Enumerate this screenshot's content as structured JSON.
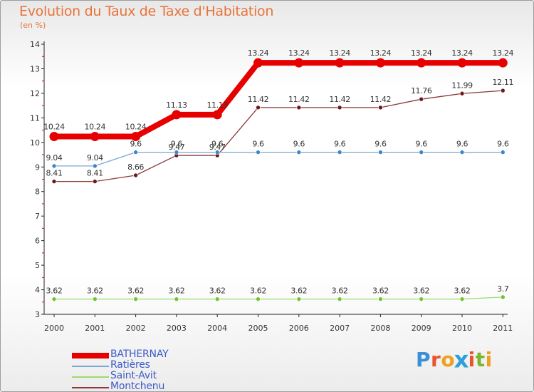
{
  "title": "Evolution du Taux de Taxe d'Habitation",
  "subtitle": "(en %)",
  "logo": {
    "text": "Proxiti",
    "colors": [
      "#3a8fd6",
      "#e8552b",
      "#f0a020",
      "#2e9fd8",
      "#e8552b",
      "#7ab530",
      "#f0a020"
    ]
  },
  "chart_data": {
    "type": "line",
    "title": "Evolution du Taux de Taxe d'Habitation",
    "ylabel": "(en %)",
    "xlabel": "",
    "ylim": [
      3,
      14
    ],
    "yticks": [
      "3",
      "4",
      "5",
      "6",
      "7",
      "8",
      "9",
      "10",
      "11",
      "12",
      "13",
      "14"
    ],
    "categories": [
      "2000",
      "2001",
      "2002",
      "2003",
      "2004",
      "2005",
      "2006",
      "2007",
      "2008",
      "2009",
      "2010",
      "2011"
    ],
    "grid": false,
    "legend_position": "bottom-left",
    "series": [
      {
        "name": "BATHERNAY",
        "color": "#e60000",
        "style": "thick",
        "values": [
          10.24,
          10.24,
          10.24,
          11.13,
          11.13,
          13.24,
          13.24,
          13.24,
          13.24,
          13.24,
          13.24,
          13.24
        ],
        "labels": [
          "10.24",
          "10.24",
          "10.24",
          "11.13",
          "11.13",
          "13.24",
          "13.24",
          "13.24",
          "13.24",
          "13.24",
          "13.24",
          "13.24"
        ]
      },
      {
        "name": "Ratières",
        "color": "#7ba7d1",
        "marker": "#3e86c9",
        "style": "thin",
        "values": [
          9.04,
          9.04,
          9.6,
          9.6,
          9.6,
          9.6,
          9.6,
          9.6,
          9.6,
          9.6,
          9.6,
          9.6
        ],
        "labels": [
          "9.04",
          "9.04",
          "9.6",
          "9.6",
          "9.6",
          "9.6",
          "9.6",
          "9.6",
          "9.6",
          "9.6",
          "9.6",
          "9.6"
        ]
      },
      {
        "name": "Saint-Avit",
        "color": "#9edb6e",
        "marker": "#73c234",
        "style": "thin",
        "values": [
          3.62,
          3.62,
          3.62,
          3.62,
          3.62,
          3.62,
          3.62,
          3.62,
          3.62,
          3.62,
          3.62,
          3.7
        ],
        "labels": [
          "3.62",
          "3.62",
          "3.62",
          "3.62",
          "3.62",
          "3.62",
          "3.62",
          "3.62",
          "3.62",
          "3.62",
          "3.62",
          "3.7"
        ]
      },
      {
        "name": "Montchenu",
        "color": "#8b3a3a",
        "marker": "#6b1a1a",
        "style": "thin",
        "values": [
          8.41,
          8.41,
          8.66,
          9.47,
          9.47,
          11.42,
          11.42,
          11.42,
          11.42,
          11.76,
          11.99,
          12.11
        ],
        "labels": [
          "8.41",
          "8.41",
          "8.66",
          "9.47",
          "9.47",
          "11.42",
          "11.42",
          "11.42",
          "11.42",
          "11.76",
          "11.99",
          "12.11"
        ]
      }
    ]
  }
}
